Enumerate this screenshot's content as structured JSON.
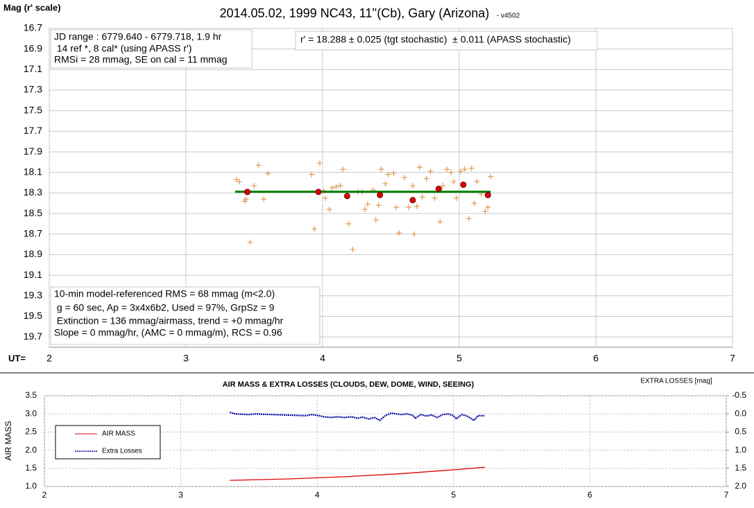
{
  "chart_data": [
    {
      "type": "scatter",
      "title": "2014.05.02, 1999 NC43, 11''(Cb), Gary (Arizona)",
      "subtitle": "- v4502",
      "ylabel": "Mag (r' scale)",
      "xlabel": "UT=",
      "xlim": [
        2,
        7
      ],
      "xticks": [
        2,
        3,
        4,
        5,
        6,
        7
      ],
      "ylim": [
        19.8,
        16.7
      ],
      "yticks": [
        16.7,
        16.9,
        17.1,
        17.3,
        17.5,
        17.7,
        17.9,
        18.1,
        18.3,
        18.5,
        18.7,
        18.9,
        19.1,
        19.3,
        19.5,
        19.7
      ],
      "grid": true,
      "annotations": [
        {
          "lines": [
            "JD range : 6779.640 - 6779.718, 1.9 hr",
            " 14 ref *, 8 cal* (using APASS r')",
            "RMSi = 28 mmag, SE on cal = 11 mmag"
          ]
        },
        {
          "lines": [
            "r' = 18.288 ± 0.025 (tgt stochastic)  ± 0.011 (APASS stochastic)"
          ]
        },
        {
          "lines": [
            "10-min model-referenced RMS = 68 mmag (m<2.0)",
            " g = 60 sec, Ap = 3x4x6b2, Used = 97%, GrpSz = 9",
            " Extinction = 136 mmag/airmass, trend = +0 mmag/hr",
            "Slope = 0 mmag/hr, (AMC = 0 mmag/m), RCS = 0.96"
          ]
        }
      ],
      "series": [
        {
          "marker": "cross",
          "color": "#e0a060",
          "x": [
            3.37,
            3.39,
            3.43,
            3.44,
            3.47,
            3.5,
            3.53,
            3.57,
            3.6,
            3.92,
            3.94,
            3.98,
            4.01,
            4.02,
            4.05,
            4.07,
            4.1,
            4.13,
            4.15,
            4.19,
            4.22,
            4.26,
            4.29,
            4.31,
            4.33,
            4.37,
            4.39,
            4.41,
            4.43,
            4.46,
            4.48,
            4.52,
            4.54,
            4.56,
            4.6,
            4.63,
            4.66,
            4.67,
            4.69,
            4.71,
            4.73,
            4.76,
            4.79,
            4.82,
            4.86,
            4.88,
            4.91,
            4.94,
            4.96,
            4.98,
            5.01,
            5.04,
            5.07,
            5.09,
            5.11,
            5.13,
            5.16,
            5.19,
            5.21,
            5.23
          ],
          "values": [
            18.17,
            18.19,
            18.38,
            18.36,
            18.78,
            18.23,
            18.03,
            18.36,
            18.11,
            18.12,
            18.65,
            18.01,
            18.28,
            18.35,
            18.46,
            18.25,
            18.24,
            18.23,
            18.07,
            18.6,
            18.85,
            18.29,
            18.29,
            18.46,
            18.41,
            18.27,
            18.56,
            18.42,
            18.07,
            18.21,
            18.12,
            18.11,
            18.44,
            18.69,
            18.15,
            18.44,
            18.23,
            18.7,
            18.43,
            18.05,
            18.34,
            18.16,
            18.09,
            18.35,
            18.58,
            18.23,
            18.07,
            18.1,
            18.19,
            18.35,
            18.09,
            18.07,
            18.55,
            18.06,
            18.4,
            18.19,
            18.31,
            18.48,
            18.44,
            18.14
          ]
        },
        {
          "marker": "line",
          "color": "#008000",
          "x": [
            3.36,
            5.23
          ],
          "values": [
            18.288,
            18.288
          ]
        },
        {
          "marker": "circle",
          "color": "#dd0000",
          "x": [
            3.45,
            3.97,
            4.18,
            4.42,
            4.66,
            4.85,
            5.03,
            5.21
          ],
          "values": [
            18.29,
            18.29,
            18.33,
            18.32,
            18.37,
            18.26,
            18.22,
            18.32
          ]
        }
      ]
    },
    {
      "type": "line",
      "title": "AIR MASS & EXTRA LOSSES (CLOUDS, DEW, DOME, WIND, SEEING)",
      "ylabel": "AIR MASS",
      "y2label": "EXTRA LOSSES [mag]",
      "xlim": [
        2,
        7
      ],
      "xticks": [
        2,
        3,
        4,
        5,
        6,
        7
      ],
      "ylim": [
        1,
        3.5
      ],
      "yticks": [
        {
          "value": 1,
          "label": "1.0"
        },
        1.5,
        {
          "value": 2,
          "label": "2.0"
        },
        2.5,
        {
          "value": 3,
          "label": "3.0"
        },
        3.5
      ],
      "y2lim": [
        2,
        -0.5
      ],
      "y2ticks": [
        -0.5,
        {
          "value": 0,
          "label": "0.0"
        },
        0.5,
        {
          "value": 1,
          "label": "1.0"
        },
        1.5,
        {
          "value": 2,
          "label": "2.0"
        }
      ],
      "grid": true,
      "legend": "left",
      "series": [
        {
          "name": "AIR MASS",
          "color": "#dd0000",
          "x": [
            3.36,
            3.8,
            4.2,
            4.6,
            5.0,
            5.23
          ],
          "values": [
            1.17,
            1.21,
            1.27,
            1.35,
            1.46,
            1.53
          ]
        },
        {
          "name": "Extra Losses",
          "color": "#0000aa",
          "axis": "y2",
          "dashed": true,
          "x": [
            3.36,
            3.4,
            3.45,
            3.5,
            3.55,
            3.6,
            3.92,
            3.96,
            4.0,
            4.05,
            4.1,
            4.15,
            4.2,
            4.25,
            4.3,
            4.33,
            4.38,
            4.42,
            4.46,
            4.5,
            4.54,
            4.58,
            4.62,
            4.66,
            4.7,
            4.72,
            4.76,
            4.8,
            4.84,
            4.88,
            4.92,
            4.96,
            5.0,
            5.02,
            5.06,
            5.1,
            5.15,
            5.18,
            5.23
          ],
          "values": [
            -0.04,
            0.0,
            0.01,
            0.02,
            0.0,
            0.01,
            0.05,
            0.02,
            0.04,
            0.08,
            0.1,
            0.08,
            0.1,
            0.08,
            0.12,
            0.09,
            0.14,
            0.1,
            0.18,
            0.05,
            -0.02,
            0.0,
            0.02,
            0.0,
            0.04,
            0.12,
            0.02,
            0.06,
            0.03,
            0.1,
            0.02,
            0.0,
            0.05,
            0.14,
            0.02,
            0.06,
            0.18,
            0.05,
            0.05
          ]
        }
      ]
    }
  ]
}
